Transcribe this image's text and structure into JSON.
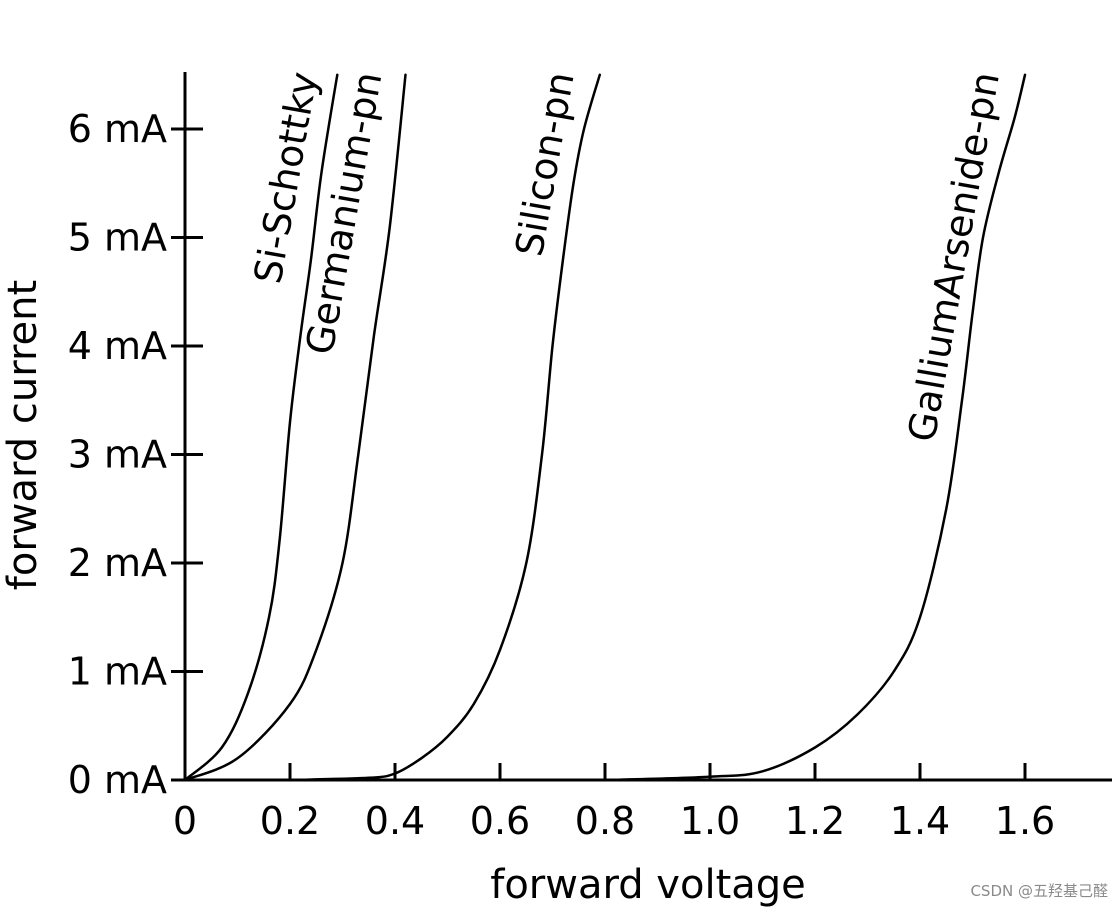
{
  "chart_data": {
    "type": "line",
    "title": "",
    "xlabel": "forward voltage",
    "ylabel": "forward current",
    "xlim": [
      0,
      1.8
    ],
    "ylim": [
      0,
      6.6
    ],
    "x_ticks": [
      {
        "value": 0,
        "label": "0"
      },
      {
        "value": 0.2,
        "label": "0.2"
      },
      {
        "value": 0.4,
        "label": "0.4"
      },
      {
        "value": 0.6,
        "label": "0.6"
      },
      {
        "value": 0.8,
        "label": "0.8"
      },
      {
        "value": 1.0,
        "label": "1.0"
      },
      {
        "value": 1.2,
        "label": "1.2"
      },
      {
        "value": 1.4,
        "label": "1.4"
      },
      {
        "value": 1.6,
        "label": "1.6"
      }
    ],
    "y_ticks": [
      {
        "value": 0,
        "label": "0 mA"
      },
      {
        "value": 1,
        "label": "1 mA"
      },
      {
        "value": 2,
        "label": "2 mA"
      },
      {
        "value": 3,
        "label": "3 mA"
      },
      {
        "value": 4,
        "label": "4 mA"
      },
      {
        "value": 5,
        "label": "5 mA"
      },
      {
        "value": 6,
        "label": "6 mA"
      }
    ],
    "grid": false,
    "series": [
      {
        "name": "Si-Schottky",
        "x": [
          0,
          0.07,
          0.12,
          0.16,
          0.18,
          0.2,
          0.22,
          0.24,
          0.26,
          0.29
        ],
        "y": [
          0,
          0.3,
          0.8,
          1.5,
          2.2,
          3.3,
          4.1,
          4.8,
          5.6,
          6.5
        ]
      },
      {
        "name": "Germanium-pn",
        "x": [
          0,
          0.1,
          0.2,
          0.25,
          0.3,
          0.33,
          0.36,
          0.39,
          0.42
        ],
        "y": [
          0,
          0.2,
          0.7,
          1.2,
          2.0,
          3.0,
          4.1,
          5.1,
          6.5
        ]
      },
      {
        "name": "Silicon-pn",
        "x": [
          0.2,
          0.35,
          0.4,
          0.45,
          0.5,
          0.55,
          0.6,
          0.65,
          0.68,
          0.7,
          0.72,
          0.74,
          0.76,
          0.79
        ],
        "y": [
          0,
          0.02,
          0.06,
          0.2,
          0.4,
          0.7,
          1.2,
          2.0,
          3.0,
          4.0,
          4.8,
          5.5,
          6.0,
          6.5
        ]
      },
      {
        "name": "GalliumArsenide-pn",
        "x": [
          0.8,
          1.0,
          1.1,
          1.2,
          1.28,
          1.35,
          1.4,
          1.45,
          1.48,
          1.5,
          1.52,
          1.55,
          1.58,
          1.6
        ],
        "y": [
          0,
          0.03,
          0.08,
          0.3,
          0.6,
          1.0,
          1.5,
          2.5,
          3.5,
          4.3,
          5.0,
          5.6,
          6.1,
          6.5
        ]
      }
    ]
  },
  "watermark": "CSDN @五羟基己醛"
}
